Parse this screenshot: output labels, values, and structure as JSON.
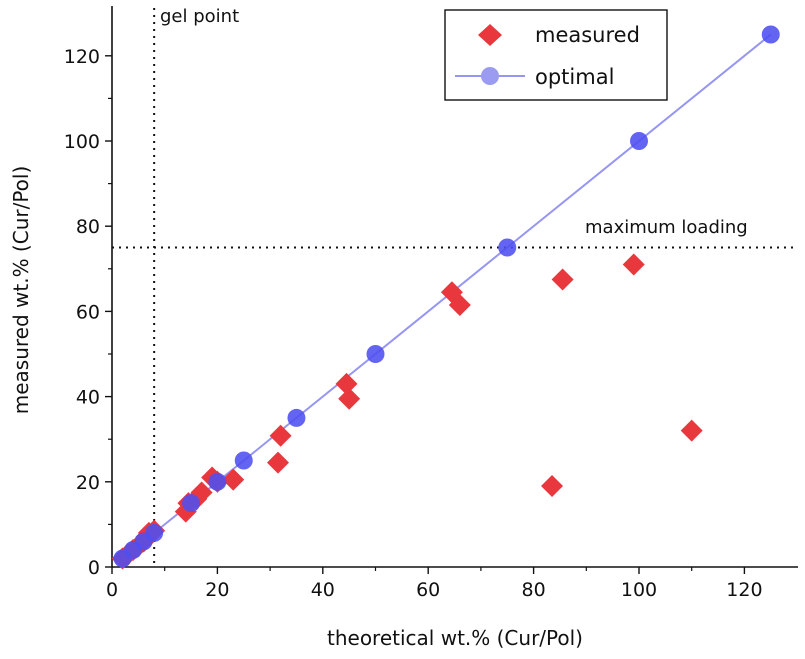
{
  "chart_data": {
    "type": "scatter",
    "xlabel": "theoretical wt.% (Cur/Pol)",
    "ylabel": "measured wt.% (Cur/Pol)",
    "xlim": [
      0,
      130
    ],
    "ylim": [
      0,
      130
    ],
    "xticks": [
      0,
      20,
      40,
      60,
      80,
      100,
      120
    ],
    "yticks": [
      0,
      20,
      40,
      60,
      80,
      100,
      120
    ],
    "grid": false,
    "legend_position": "top-right",
    "annotations": [
      {
        "text": "gel point",
        "x": 8,
        "line": "vertical-dotted"
      },
      {
        "text": "maximum loading",
        "y": 75,
        "line": "horizontal-dotted"
      }
    ],
    "series": [
      {
        "name": "measured",
        "marker": "diamond",
        "color": "#e8383d",
        "points": [
          [
            2,
            2
          ],
          [
            3,
            3
          ],
          [
            4,
            4
          ],
          [
            5,
            5
          ],
          [
            6,
            6
          ],
          [
            6.5,
            7
          ],
          [
            7,
            8
          ],
          [
            8,
            8.5
          ],
          [
            14,
            13
          ],
          [
            14.5,
            15
          ],
          [
            16,
            16
          ],
          [
            17,
            17.5
          ],
          [
            19,
            21
          ],
          [
            20,
            20
          ],
          [
            23,
            20.5
          ],
          [
            31.5,
            24.5
          ],
          [
            32,
            30.8
          ],
          [
            44.5,
            43
          ],
          [
            45,
            39.5
          ],
          [
            64.5,
            64.5
          ],
          [
            66,
            61.5
          ],
          [
            83.5,
            19
          ],
          [
            85.5,
            67.5
          ],
          [
            99,
            71
          ],
          [
            110,
            32
          ]
        ]
      },
      {
        "name": "optimal",
        "marker": "circle",
        "line": true,
        "color": "#4f4ff0",
        "line_color": "#9696f2",
        "points": [
          [
            2,
            2
          ],
          [
            4,
            4
          ],
          [
            6,
            6
          ],
          [
            8,
            8
          ],
          [
            15,
            15
          ],
          [
            20,
            20
          ],
          [
            25,
            25
          ],
          [
            35,
            35
          ],
          [
            50,
            50
          ],
          [
            75,
            75
          ],
          [
            100,
            100
          ],
          [
            125,
            125
          ]
        ]
      }
    ]
  }
}
